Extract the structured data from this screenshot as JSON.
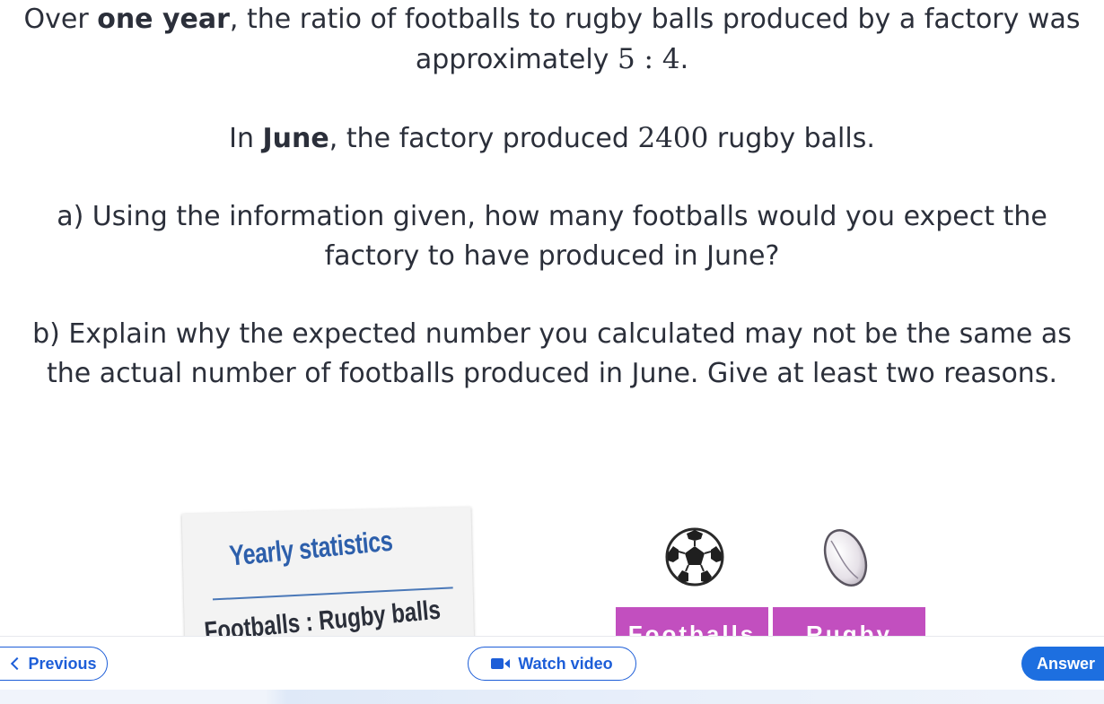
{
  "question": {
    "line1_pre": "Over ",
    "line1_bold": "one year",
    "line1_post": ", the ratio of footballs to rugby balls produced by a factory was approximately ",
    "ratio": "5 : 4",
    "line1_end": ".",
    "line2_pre": "In ",
    "line2_bold": "June",
    "line2_mid": ", the factory produced ",
    "line2_number": "2400",
    "line2_post": " rugby balls.",
    "part_a": "a) Using the information given, how many footballs would you expect the factory to have produced in June?",
    "part_b": "b) Explain why the expected number you calculated may not be the same as the actual number of footballs produced in June. Give at least two reasons."
  },
  "illustration": {
    "stats_title": "Yearly statistics",
    "stats_ratio": "Footballs : Rugby balls",
    "footballs_label": "Footballs",
    "rugby_label": "Rugby balls",
    "football_icon": "football-icon",
    "rugby_icon": "rugby-ball-icon",
    "box_color": "#c24fbf"
  },
  "nav": {
    "previous_label": "Previous",
    "video_label": "Watch video",
    "answer_label": "Answer",
    "accent_color": "#1d5ed8"
  }
}
